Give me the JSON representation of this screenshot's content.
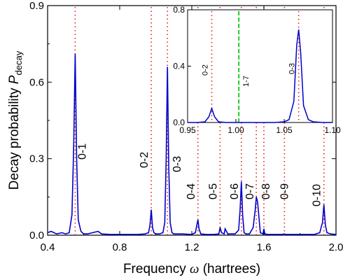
{
  "chart_data": [
    {
      "type": "line",
      "xlabel": "Frequency",
      "xlabel_symbol": "ω",
      "xlabel_unit": "(hartrees)",
      "ylabel": "Decay probability",
      "ylabel_symbol": "P",
      "ylabel_subscript": "decay",
      "xlim": [
        0.4,
        2.0
      ],
      "ylim": [
        0,
        0.9
      ],
      "x_ticks": [
        0.4,
        0.8,
        1.2,
        1.6,
        2.0
      ],
      "x_tick_labels": [
        "0.4",
        "0.8",
        "1.2",
        "1.6",
        "2.0"
      ],
      "y_ticks": [
        0.0,
        0.3,
        0.6,
        0.9
      ],
      "y_tick_labels": [
        "0.0",
        "0.3",
        "0.6",
        "0.9"
      ],
      "line_color": "#0000cc",
      "marker_color": "#e02020",
      "transition_markers": [
        {
          "label": "0-1",
          "x": 0.553
        },
        {
          "label": "0-2",
          "x": 0.975
        },
        {
          "label": "0-3",
          "x": 1.065
        },
        {
          "label": "0-4",
          "x": 1.234
        },
        {
          "label": "0-5",
          "x": 1.357
        },
        {
          "label": "0-6",
          "x": 1.475
        },
        {
          "label": "0-7",
          "x": 1.558
        },
        {
          "label": "0-8",
          "x": 1.6
        },
        {
          "label": "0-9",
          "x": 1.714
        },
        {
          "label": "0-10",
          "x": 1.933
        }
      ],
      "series": [
        {
          "x": [
            0.4,
            0.42,
            0.45,
            0.48,
            0.5,
            0.52,
            0.535,
            0.545,
            0.553,
            0.561,
            0.57,
            0.585,
            0.6,
            0.62,
            0.65,
            0.68,
            0.7,
            0.75,
            0.8,
            0.85,
            0.9,
            0.94,
            0.96,
            0.968,
            0.975,
            0.982,
            0.99,
            1.0,
            1.02,
            1.04,
            1.05,
            1.058,
            1.065,
            1.072,
            1.08,
            1.09,
            1.1,
            1.15,
            1.2,
            1.22,
            1.228,
            1.234,
            1.24,
            1.25,
            1.28,
            1.32,
            1.35,
            1.357,
            1.365,
            1.38,
            1.385,
            1.4,
            1.44,
            1.46,
            1.468,
            1.475,
            1.482,
            1.49,
            1.5,
            1.52,
            1.54,
            1.552,
            1.558,
            1.565,
            1.58,
            1.595,
            1.6,
            1.605,
            1.62,
            1.65,
            1.7,
            1.714,
            1.72,
            1.8,
            1.88,
            1.91,
            1.925,
            1.933,
            1.941,
            1.95,
            1.97,
            2.0
          ],
          "y": [
            0.01,
            0.015,
            0.005,
            0.01,
            0.005,
            0.01,
            0.08,
            0.35,
            0.71,
            0.3,
            0.06,
            0.015,
            0.005,
            0.005,
            0.01,
            0.015,
            0.005,
            0.003,
            0.003,
            0.003,
            0.003,
            0.005,
            0.01,
            0.04,
            0.1,
            0.03,
            0.01,
            0.005,
            0.005,
            0.01,
            0.05,
            0.3,
            0.66,
            0.28,
            0.05,
            0.01,
            0.005,
            0.005,
            0.003,
            0.01,
            0.04,
            0.06,
            0.025,
            0.005,
            0.003,
            0.003,
            0.005,
            0.03,
            0.01,
            0.005,
            0.025,
            0.005,
            0.005,
            0.02,
            0.1,
            0.21,
            0.08,
            0.01,
            0.005,
            0.005,
            0.03,
            0.1,
            0.15,
            0.13,
            0.01,
            0.005,
            0.025,
            0.005,
            0.003,
            0.003,
            0.003,
            0.005,
            0.003,
            0.003,
            0.003,
            0.01,
            0.05,
            0.12,
            0.04,
            0.01,
            0.005,
            0.003
          ]
        }
      ]
    },
    {
      "type": "line",
      "xlim": [
        0.95,
        1.1
      ],
      "ylim": [
        0,
        0.8
      ],
      "x_ticks": [
        0.95,
        1.0,
        1.05,
        1.1
      ],
      "x_tick_labels": [
        "0.95",
        "1.00",
        "1.05",
        "1.10"
      ],
      "y_ticks": [
        0.0,
        0.4,
        0.8
      ],
      "y_tick_labels": [
        "0.0",
        "0.4",
        "0.8"
      ],
      "line_color": "#0000cc",
      "transition_markers": [
        {
          "label": "0-2",
          "x": 0.975,
          "color": "#e02020"
        },
        {
          "label": "1-7",
          "x": 1.003,
          "color": "#22cc22"
        },
        {
          "label": "0-3",
          "x": 1.065,
          "color": "#e02020"
        }
      ],
      "series": [
        {
          "x": [
            0.95,
            0.96,
            0.968,
            0.972,
            0.975,
            0.978,
            0.982,
            0.99,
            1.0,
            1.01,
            1.02,
            1.03,
            1.04,
            1.05,
            1.055,
            1.06,
            1.063,
            1.065,
            1.067,
            1.07,
            1.075,
            1.08,
            1.09,
            1.1
          ],
          "y": [
            0.0,
            0.0,
            0.005,
            0.04,
            0.1,
            0.04,
            0.005,
            0.0,
            0.0,
            0.0,
            0.0,
            0.0,
            0.0,
            0.005,
            0.02,
            0.15,
            0.55,
            0.66,
            0.5,
            0.12,
            0.02,
            0.005,
            0.0,
            0.0
          ]
        }
      ]
    }
  ]
}
